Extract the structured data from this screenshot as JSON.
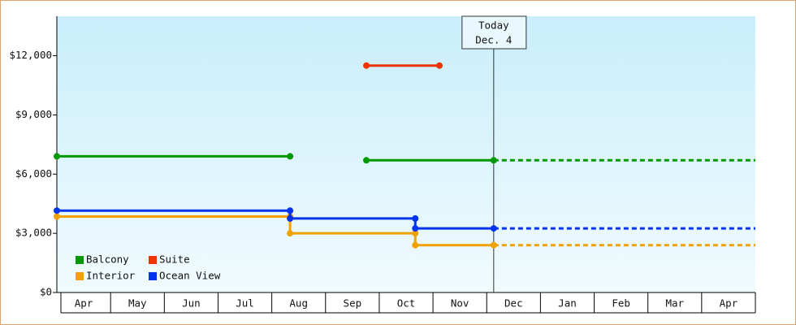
{
  "chart_data": {
    "type": "step-line",
    "categories": [
      "Apr",
      "May",
      "Jun",
      "Jul",
      "Aug",
      "Sep",
      "Oct",
      "Nov",
      "Dec",
      "Jan",
      "Feb",
      "Mar",
      "Apr"
    ],
    "xlim": [
      0,
      13
    ],
    "ylim": [
      0,
      14000
    ],
    "yticks": [
      {
        "value": 0,
        "label": "$0"
      },
      {
        "value": 3000,
        "label": "$3,000"
      },
      {
        "value": 6000,
        "label": "$6,000"
      },
      {
        "value": 9000,
        "label": "$9,000"
      },
      {
        "value": 12000,
        "label": "$12,000"
      }
    ],
    "series": [
      {
        "name": "Balcony",
        "color": "#009900",
        "projected": true,
        "x": [
          0,
          4.34,
          null,
          5.76,
          8.13
        ],
        "values": [
          6900,
          6900,
          null,
          6700,
          6700
        ]
      },
      {
        "name": "Suite",
        "color": "#ee3300",
        "projected": false,
        "x": [
          5.76,
          7.12
        ],
        "values": [
          11500,
          11500
        ]
      },
      {
        "name": "Interior",
        "color": "#f0a000",
        "projected": true,
        "x": [
          0,
          4.34,
          4.34,
          6.67,
          6.67,
          8.13
        ],
        "values": [
          3850,
          3850,
          3000,
          3000,
          2400,
          2400
        ]
      },
      {
        "name": "Ocean View",
        "color": "#0033ee",
        "projected": true,
        "x": [
          0,
          4.34,
          4.34,
          6.67,
          6.67,
          8.13
        ],
        "values": [
          4150,
          4150,
          3750,
          3750,
          3250,
          3250
        ]
      }
    ],
    "annotation": {
      "x": 8.13,
      "lines": [
        "Today",
        "Dec. 4"
      ]
    },
    "legend": "lower left"
  }
}
